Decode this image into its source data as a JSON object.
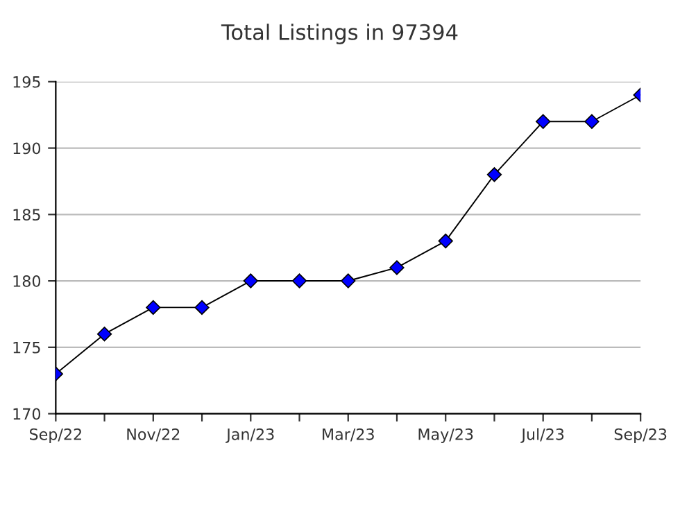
{
  "chart_data": {
    "type": "line",
    "title": "Total Listings in 97394",
    "categories": [
      "Sep/22",
      null,
      "Nov/22",
      null,
      "Jan/23",
      null,
      "Mar/23",
      null,
      "May/23",
      null,
      "Jul/23",
      null,
      "Sep/23"
    ],
    "series": [
      {
        "color": "#0000ff",
        "values": [
          173,
          176,
          178,
          178,
          180,
          180,
          180,
          181,
          183,
          188,
          192,
          192,
          194
        ]
      }
    ],
    "ylim": [
      170,
      195
    ],
    "yticks": [
      170,
      175,
      180,
      185,
      190,
      195
    ],
    "grid": "y",
    "marker": "diamond",
    "line_style": "solid",
    "legend": false
  }
}
